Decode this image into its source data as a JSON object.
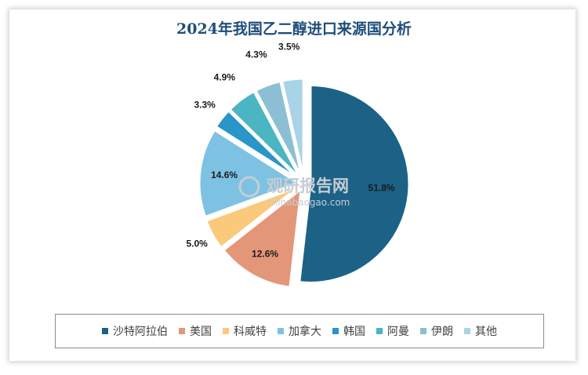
{
  "chart_data": {
    "type": "pie",
    "title": "2024年我国乙二醇进口来源国分析",
    "categories": [
      "沙特阿拉伯",
      "美国",
      "科威特",
      "加拿大",
      "韩国",
      "阿曼",
      "伊朗",
      "其他"
    ],
    "values": [
      51.8,
      12.6,
      5.0,
      14.6,
      3.3,
      4.9,
      4.3,
      3.5
    ],
    "labels": [
      "51.8%",
      "12.6%",
      "5.0%",
      "14.6%",
      "3.3%",
      "4.9%",
      "4.3%",
      "3.5%"
    ],
    "colors": [
      "#1b6286",
      "#e49679",
      "#fbc97c",
      "#7ec2e3",
      "#2a95c9",
      "#4bb5c2",
      "#8cbfd3",
      "#a9d3e6"
    ],
    "legend_position": "bottom"
  },
  "watermark": {
    "brand": "观研报告网",
    "url": "chinabaogao.com"
  }
}
